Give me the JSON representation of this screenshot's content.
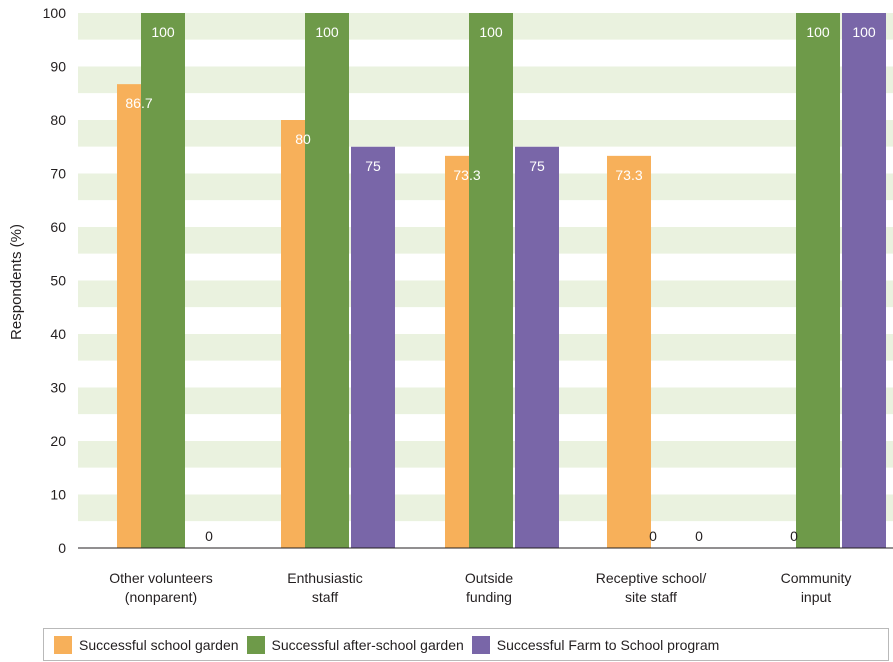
{
  "chart_data": {
    "type": "bar",
    "ylabel": "Respondents (%)",
    "ylim": [
      0,
      100
    ],
    "yticks": [
      0,
      10,
      20,
      30,
      40,
      50,
      60,
      70,
      80,
      90,
      100
    ],
    "categories": [
      [
        "Other volunteers",
        "(nonparent)"
      ],
      [
        "Enthusiastic",
        "staff"
      ],
      [
        "Outside",
        "funding"
      ],
      [
        "Receptive school/",
        "site staff"
      ],
      [
        "Community",
        "input"
      ]
    ],
    "series": [
      {
        "name": "Successful school garden",
        "color": "#f7b05a",
        "values": [
          86.7,
          80,
          73.3,
          73.3,
          0
        ]
      },
      {
        "name": "Successful after-school garden",
        "color": "#6e9a49",
        "values": [
          100,
          100,
          100,
          0,
          100
        ]
      },
      {
        "name": "Successful Farm to School program",
        "color": "#7966a8",
        "values": [
          0,
          75,
          75,
          0,
          100
        ]
      }
    ],
    "value_labels": [
      [
        "86.7",
        "100",
        "0"
      ],
      [
        "80",
        "100",
        "75"
      ],
      [
        "73.3",
        "100",
        "75"
      ],
      [
        "73.3",
        "0",
        "0"
      ],
      [
        "0",
        "100",
        "100"
      ]
    ],
    "grid": "alternating horizontal bands",
    "legend_position": "bottom"
  },
  "colors": {
    "band_light": "#ffffff",
    "band_tint": "#eaf2df",
    "axis": "#231f20"
  }
}
